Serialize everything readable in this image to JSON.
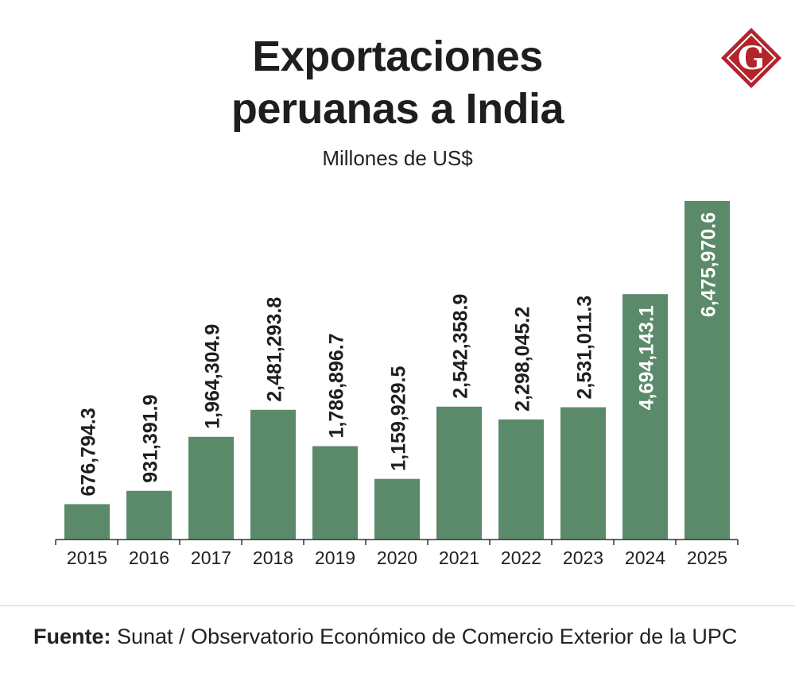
{
  "header": {
    "title_line1": "Exportaciones",
    "title_line2": "peruanas a India",
    "subtitle": "Millones de US$"
  },
  "logo": {
    "letter": "G",
    "icon": "gestion-logo-icon",
    "color": "#b2252b"
  },
  "footer": {
    "source_label": "Fuente:",
    "source_text": " Sunat / Observatorio Económico de Comercio Exterior de la UPC"
  },
  "chart_data": {
    "type": "bar",
    "title": "Exportaciones peruanas a India",
    "subtitle": "Millones de US$",
    "categories": [
      "2015",
      "2016",
      "2017",
      "2018",
      "2019",
      "2020",
      "2021",
      "2022",
      "2023",
      "2024",
      "2025"
    ],
    "values": [
      676794.3,
      931391.9,
      1964304.9,
      2481293.8,
      1786896.7,
      1159929.5,
      2542358.9,
      2298045.2,
      2531011.3,
      4694143.1,
      6475970.6
    ],
    "labels": [
      "676,794.3",
      "931,391.9",
      "1,964,304.9",
      "2,481,293.8",
      "1,786,896.7",
      "1,159,929.5",
      "2,542,358.9",
      "2,298,045.2",
      "2,531,011.3",
      "4,694,143.1",
      "6,475,970.6"
    ],
    "xlabel": "",
    "ylabel": "",
    "ylim": [
      0,
      6475970.6
    ],
    "grid": false,
    "bar_color": "#5a8a6a",
    "label_color_outside": "#1e1e1e",
    "label_color_inside": "#ffffff"
  }
}
